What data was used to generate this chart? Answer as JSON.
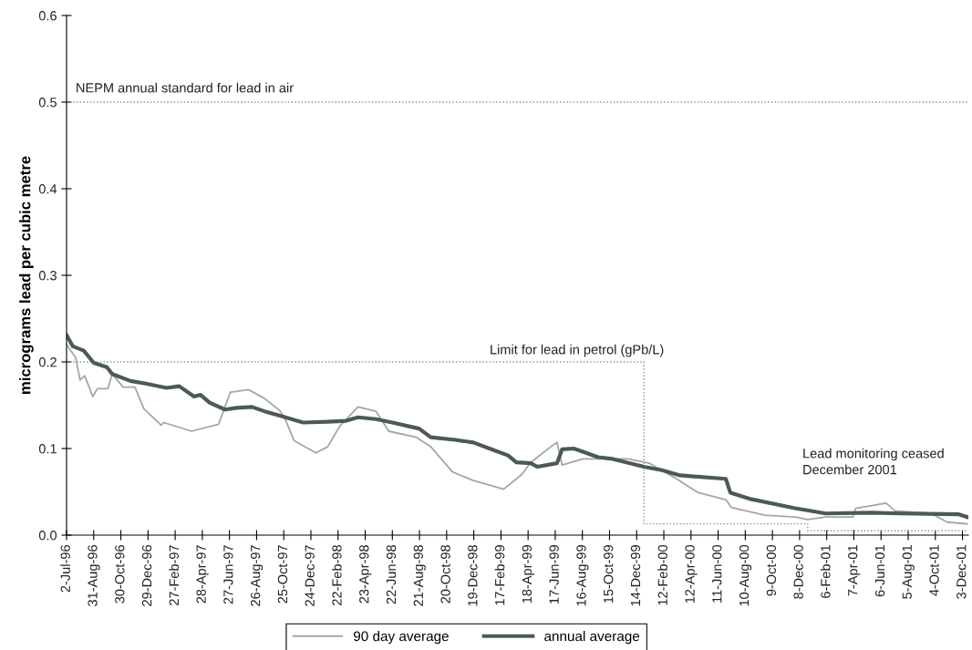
{
  "chart_data": {
    "type": "line",
    "ylabel": "micrograms lead per cubic metre",
    "xlim": [
      "1996-07-02",
      "2001-12-16"
    ],
    "ylim": [
      0,
      0.6
    ],
    "yticks": [
      {
        "value": 0,
        "label": "0.0"
      },
      {
        "value": 0.1,
        "label": "0.1"
      },
      {
        "value": 0.2,
        "label": "0.2"
      },
      {
        "value": 0.3,
        "label": "0.3"
      },
      {
        "value": 0.4,
        "label": "0.4"
      },
      {
        "value": 0.5,
        "label": "0.5"
      },
      {
        "value": 0.6,
        "label": "0.6"
      }
    ],
    "xticks": [
      {
        "value": "1996-07-02",
        "label": "2-Jul-96"
      },
      {
        "value": "1996-08-31",
        "label": "31-Aug-96"
      },
      {
        "value": "1996-10-30",
        "label": "30-Oct-96"
      },
      {
        "value": "1996-12-29",
        "label": "29-Dec-96"
      },
      {
        "value": "1997-02-27",
        "label": "27-Feb-97"
      },
      {
        "value": "1997-04-28",
        "label": "28-Apr-97"
      },
      {
        "value": "1997-06-27",
        "label": "27-Jun-97"
      },
      {
        "value": "1997-08-26",
        "label": "26-Aug-97"
      },
      {
        "value": "1997-10-25",
        "label": "25-Oct-97"
      },
      {
        "value": "1997-12-24",
        "label": "24-Dec-97"
      },
      {
        "value": "1998-02-22",
        "label": "22-Feb-98"
      },
      {
        "value": "1998-04-23",
        "label": "23-Apr-98"
      },
      {
        "value": "1998-06-22",
        "label": "22-Jun-98"
      },
      {
        "value": "1998-08-21",
        "label": "21-Aug-98"
      },
      {
        "value": "1998-10-20",
        "label": "20-Oct-98"
      },
      {
        "value": "1998-12-19",
        "label": "19-Dec-98"
      },
      {
        "value": "1999-02-17",
        "label": "17-Feb-99"
      },
      {
        "value": "1999-04-18",
        "label": "18-Apr-99"
      },
      {
        "value": "1999-06-17",
        "label": "17-Jun-99"
      },
      {
        "value": "1999-08-16",
        "label": "16-Aug-99"
      },
      {
        "value": "1999-10-15",
        "label": "15-Oct-99"
      },
      {
        "value": "1999-12-14",
        "label": "14-Dec-99"
      },
      {
        "value": "2000-02-12",
        "label": "12-Feb-00"
      },
      {
        "value": "2000-04-12",
        "label": "12-Apr-00"
      },
      {
        "value": "2000-06-11",
        "label": "11-Jun-00"
      },
      {
        "value": "2000-08-10",
        "label": "10-Aug-00"
      },
      {
        "value": "2000-10-09",
        "label": "9-Oct-00"
      },
      {
        "value": "2000-12-08",
        "label": "8-Dec-00"
      },
      {
        "value": "2001-02-06",
        "label": "6-Feb-01"
      },
      {
        "value": "2001-04-07",
        "label": "7-Apr-01"
      },
      {
        "value": "2001-06-06",
        "label": "6-Jun-01"
      },
      {
        "value": "2001-08-05",
        "label": "5-Aug-01"
      },
      {
        "value": "2001-10-04",
        "label": "4-Oct-01"
      },
      {
        "value": "2001-12-03",
        "label": "3-Dec-01"
      }
    ],
    "series": [
      {
        "type": "step",
        "color": "#8c8c8c",
        "line_style": "dotted",
        "x": [
          "1996-07-02",
          "1999-12-30",
          "2000-12-26",
          "2001-12-13"
        ],
        "values": [
          0.2,
          0.013,
          0.005,
          0.005
        ]
      },
      {
        "name": "90 day average",
        "color": "#a6a6a6",
        "x": [
          "1996-07-02",
          "1996-07-22",
          "1996-08-01",
          "1996-08-11",
          "1996-08-29",
          "1996-09-08",
          "1996-10-01",
          "1996-10-11",
          "1996-11-04",
          "1996-11-30",
          "1996-12-20",
          "1997-01-27",
          "1997-02-02",
          "1997-04-04",
          "1997-06-03",
          "1997-06-29",
          "1997-08-08",
          "1997-09-12",
          "1997-10-16",
          "1997-10-28",
          "1997-11-17",
          "1998-01-04",
          "1998-01-30",
          "1998-02-26",
          "1998-04-07",
          "1998-05-17",
          "1998-06-14",
          "1998-08-14",
          "1998-09-15",
          "1998-11-02",
          "1998-12-18",
          "1999-01-28",
          "1999-02-23",
          "1999-04-04",
          "1999-04-24",
          "1999-06-07",
          "1999-06-21",
          "1999-07-02",
          "1999-08-17",
          "1999-11-25",
          "2000-01-11",
          "2000-03-05",
          "2000-04-28",
          "2000-06-28",
          "2000-07-10",
          "2000-09-22",
          "2000-11-28",
          "2000-12-26",
          "2001-02-04",
          "2001-04-05",
          "2001-04-11",
          "2001-06-17",
          "2001-07-07",
          "2001-09-25",
          "2001-10-30",
          "2001-12-13"
        ],
        "values": [
          0.22,
          0.205,
          0.179,
          0.184,
          0.16,
          0.169,
          0.169,
          0.186,
          0.171,
          0.171,
          0.146,
          0.127,
          0.13,
          0.12,
          0.128,
          0.165,
          0.168,
          0.158,
          0.144,
          0.134,
          0.109,
          0.095,
          0.102,
          0.126,
          0.148,
          0.143,
          0.12,
          0.113,
          0.102,
          0.073,
          0.063,
          0.057,
          0.053,
          0.07,
          0.084,
          0.102,
          0.107,
          0.081,
          0.088,
          0.088,
          0.083,
          0.067,
          0.049,
          0.041,
          0.032,
          0.023,
          0.021,
          0.018,
          0.021,
          0.021,
          0.031,
          0.037,
          0.028,
          0.025,
          0.015,
          0.013
        ]
      },
      {
        "name": "annual average",
        "color": "#4b5959",
        "x": [
          "1996-07-02",
          "1996-07-16",
          "1996-08-09",
          "1996-08-31",
          "1996-09-29",
          "1996-10-11",
          "1996-11-20",
          "1996-12-24",
          "1997-02-08",
          "1997-03-08",
          "1997-04-10",
          "1997-04-24",
          "1997-05-14",
          "1997-06-17",
          "1997-07-13",
          "1997-08-16",
          "1997-09-18",
          "1997-10-22",
          "1997-12-07",
          "1998-01-30",
          "1998-03-12",
          "1998-04-07",
          "1998-05-17",
          "1998-06-22",
          "1998-08-20",
          "1998-09-15",
          "1998-11-08",
          "1998-12-18",
          "1999-01-28",
          "1999-03-05",
          "1999-03-23",
          "1999-04-24",
          "1999-05-08",
          "1999-06-21",
          "1999-07-02",
          "1999-07-28",
          "1999-09-20",
          "1999-10-22",
          "1999-12-30",
          "2000-02-08",
          "2000-03-19",
          "2000-06-28",
          "2000-07-08",
          "2000-08-19",
          "2000-11-28",
          "2001-02-04",
          "2001-05-16",
          "2001-07-21",
          "2001-11-25",
          "2001-12-13"
        ],
        "values": [
          0.231,
          0.218,
          0.213,
          0.199,
          0.194,
          0.186,
          0.178,
          0.175,
          0.17,
          0.172,
          0.16,
          0.162,
          0.153,
          0.145,
          0.147,
          0.148,
          0.142,
          0.137,
          0.13,
          0.131,
          0.132,
          0.136,
          0.134,
          0.13,
          0.123,
          0.113,
          0.11,
          0.107,
          0.099,
          0.092,
          0.084,
          0.083,
          0.079,
          0.083,
          0.099,
          0.1,
          0.09,
          0.088,
          0.079,
          0.075,
          0.069,
          0.065,
          0.049,
          0.042,
          0.031,
          0.025,
          0.026,
          0.025,
          0.024,
          0.021
        ]
      }
    ],
    "ref_lines": [
      {
        "axis": "y",
        "value": 0.5,
        "label": "NEPM annual standard for lead in air",
        "color": "#8c8c8c",
        "line_style": "dotted"
      }
    ],
    "annotations": [
      {
        "text": "Limit for lead in petrol (gPb/L)",
        "x": "1999-01-23",
        "y": 0.2
      },
      "Lead monitoring ceased\nDecember 2001"
    ],
    "legend": "bottom",
    "grid": false,
    "marker": "none"
  }
}
